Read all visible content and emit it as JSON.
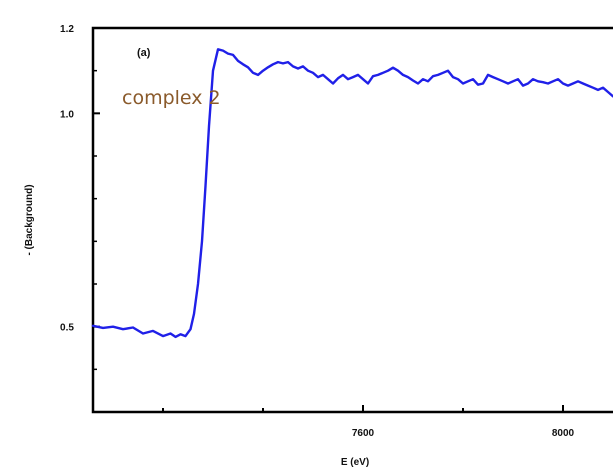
{
  "chart_data": {
    "type": "line",
    "panel_label": "(a)",
    "annotation": "complex 2",
    "xlabel": "E (eV)",
    "ylabel": "- (Background)",
    "xlim": [
      7060,
      8100
    ],
    "ylim": [
      0.3,
      1.2
    ],
    "x_ticks": [
      7600,
      8000
    ],
    "y_ticks": [
      0.5,
      1.0,
      1.2
    ],
    "y_tick_labels": [
      "0.5",
      "1.0",
      "1.2"
    ],
    "grid": false,
    "colors": {
      "series": "#2020e8",
      "annotation": "#8a5a2b",
      "axis": "#000000"
    },
    "series": [
      {
        "x": [
          7060,
          7080,
          7100,
          7120,
          7140,
          7160,
          7180,
          7200,
          7215,
          7225,
          7235,
          7245,
          7255,
          7262,
          7270,
          7278,
          7285,
          7292,
          7300,
          7310,
          7320,
          7330,
          7340,
          7350,
          7360,
          7370,
          7380,
          7390,
          7400,
          7410,
          7420,
          7430,
          7440,
          7450,
          7460,
          7470,
          7480,
          7490,
          7500,
          7510,
          7520,
          7530,
          7540,
          7550,
          7560,
          7570,
          7580,
          7590,
          7600,
          7610,
          7620,
          7630,
          7640,
          7650,
          7660,
          7670,
          7680,
          7690,
          7700,
          7710,
          7720,
          7730,
          7740,
          7750,
          7760,
          7770,
          7780,
          7790,
          7800,
          7810,
          7820,
          7830,
          7840,
          7850,
          7860,
          7870,
          7880,
          7890,
          7900,
          7910,
          7920,
          7930,
          7940,
          7950,
          7960,
          7970,
          7980,
          7990,
          8000,
          8010,
          8020,
          8030,
          8040,
          8050,
          8060,
          8070,
          8080,
          8090,
          8100
        ],
        "y": [
          0.502,
          0.497,
          0.5,
          0.494,
          0.498,
          0.484,
          0.49,
          0.478,
          0.484,
          0.476,
          0.482,
          0.478,
          0.494,
          0.53,
          0.6,
          0.7,
          0.83,
          0.97,
          1.1,
          1.15,
          1.147,
          1.14,
          1.137,
          1.123,
          1.115,
          1.108,
          1.095,
          1.09,
          1.1,
          1.108,
          1.115,
          1.12,
          1.117,
          1.12,
          1.11,
          1.105,
          1.11,
          1.1,
          1.095,
          1.085,
          1.09,
          1.08,
          1.07,
          1.082,
          1.09,
          1.08,
          1.085,
          1.09,
          1.08,
          1.07,
          1.087,
          1.09,
          1.095,
          1.1,
          1.107,
          1.1,
          1.09,
          1.085,
          1.077,
          1.07,
          1.08,
          1.075,
          1.087,
          1.09,
          1.095,
          1.1,
          1.085,
          1.08,
          1.07,
          1.075,
          1.08,
          1.067,
          1.07,
          1.09,
          1.085,
          1.08,
          1.075,
          1.07,
          1.075,
          1.08,
          1.065,
          1.07,
          1.08,
          1.075,
          1.073,
          1.07,
          1.075,
          1.08,
          1.07,
          1.065,
          1.07,
          1.075,
          1.07,
          1.065,
          1.06,
          1.055,
          1.06,
          1.05,
          1.04
        ]
      }
    ]
  }
}
